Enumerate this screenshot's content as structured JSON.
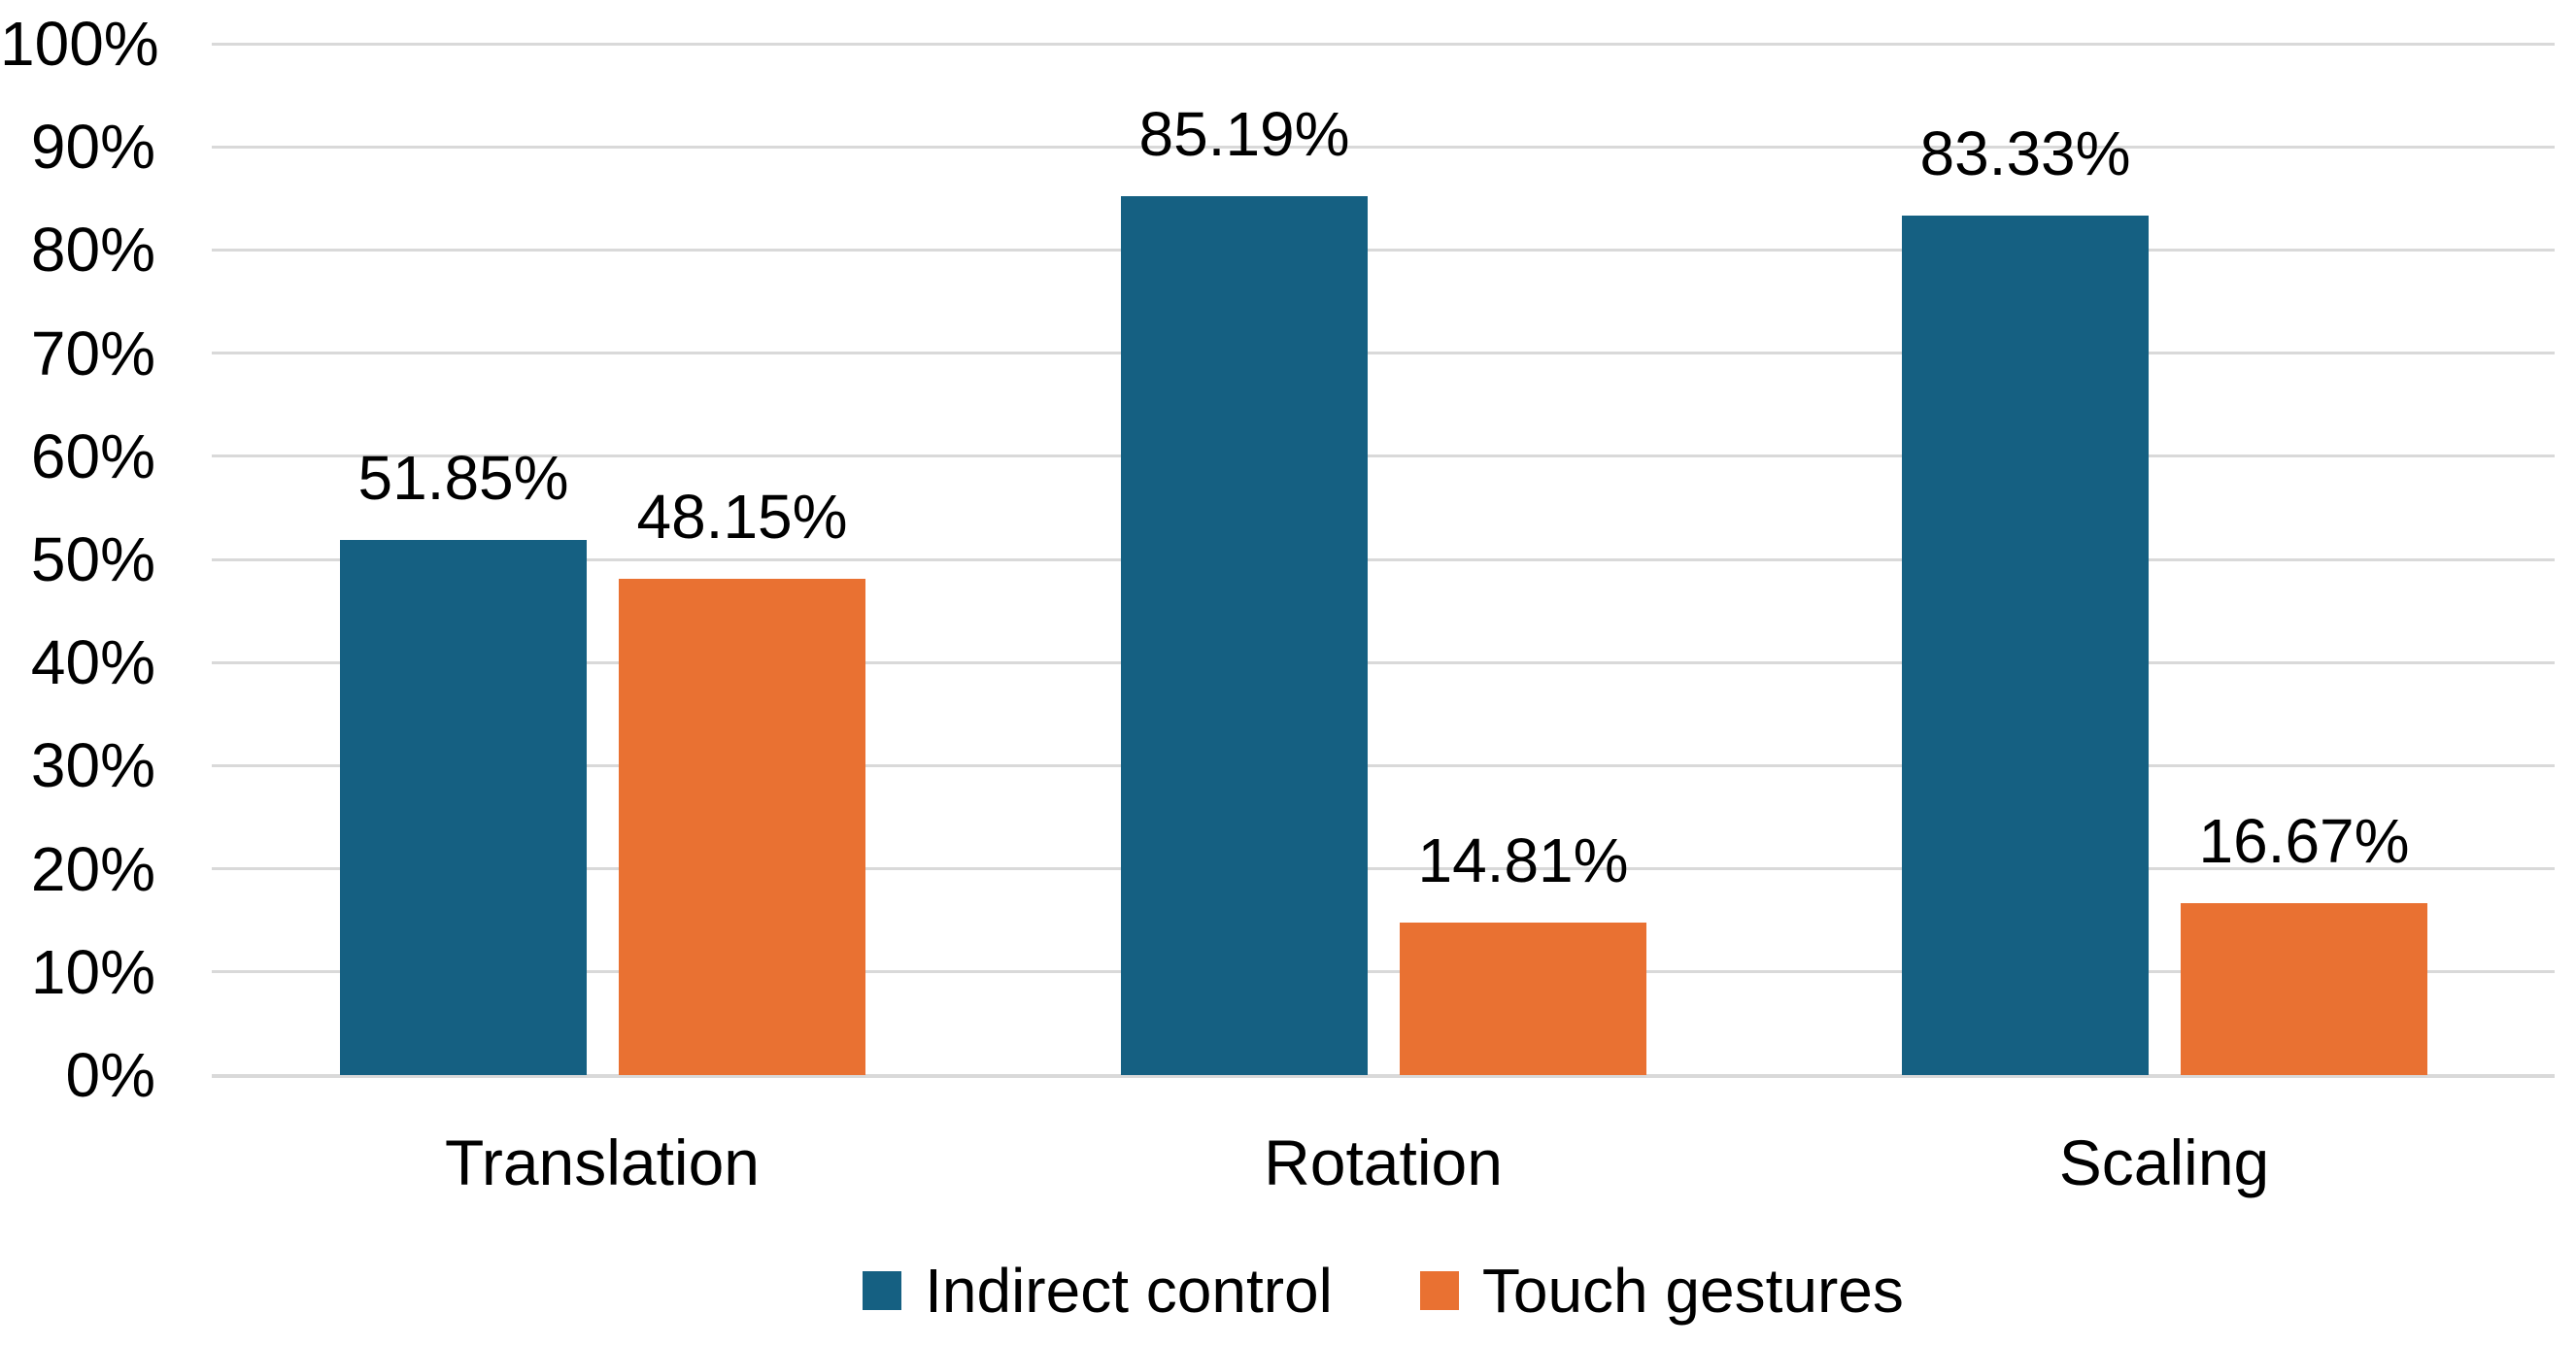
{
  "chart_data": {
    "type": "bar",
    "title": "",
    "xlabel": "",
    "ylabel": "",
    "categories": [
      "Translation",
      "Rotation",
      "Scaling"
    ],
    "series": [
      {
        "name": "Indirect control",
        "color": "#156082",
        "values": [
          51.85,
          85.19,
          83.33
        ],
        "data_labels": [
          "51.85%",
          "85.19%",
          "83.33%"
        ]
      },
      {
        "name": "Touch gestures",
        "color": "#E97132",
        "values": [
          48.15,
          14.81,
          16.67
        ],
        "data_labels": [
          "48.15%",
          "14.81%",
          "16.67%"
        ]
      }
    ],
    "ylim": [
      0,
      100
    ],
    "ytick_labels": [
      "0%",
      "10%",
      "20%",
      "30%",
      "40%",
      "50%",
      "60%",
      "70%",
      "80%",
      "90%",
      "100%"
    ],
    "grid": true,
    "legend_position": "bottom",
    "colors": {
      "background": "#FFFFFF",
      "gridline": "#D9D9D9",
      "text": "#000000"
    }
  }
}
